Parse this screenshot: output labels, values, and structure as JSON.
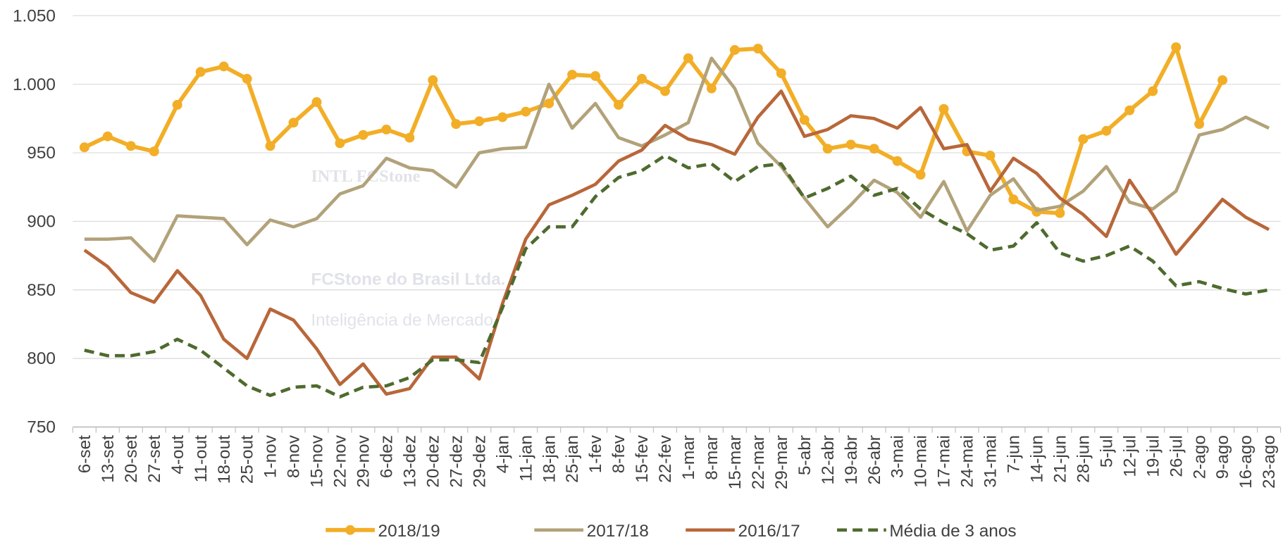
{
  "chart_data": {
    "type": "line",
    "categories": [
      "6-set",
      "13-set",
      "20-set",
      "27-set",
      "4-out",
      "11-out",
      "18-out",
      "25-out",
      "1-nov",
      "8-nov",
      "15-nov",
      "22-nov",
      "29-nov",
      "6-dez",
      "13-dez",
      "20-dez",
      "27-dez",
      "29-dez",
      "4-jan",
      "11-jan",
      "18-jan",
      "25-jan",
      "1-fev",
      "8-fev",
      "15-fev",
      "22-fev",
      "1-mar",
      "8-mar",
      "15-mar",
      "22-mar",
      "29-mar",
      "5-abr",
      "12-abr",
      "19-abr",
      "26-abr",
      "3-mai",
      "10-mai",
      "17-mai",
      "24-mai",
      "31-mai",
      "7-jun",
      "14-jun",
      "21-jun",
      "28-jun",
      "5-jul",
      "12-jul",
      "19-jul",
      "26-jul",
      "2-ago",
      "9-ago",
      "16-ago",
      "23-ago"
    ],
    "series": [
      {
        "name": "2018/19",
        "color": "#f2ae27",
        "markers": true,
        "values": [
          954,
          962,
          955,
          951,
          985,
          1009,
          1013,
          1004,
          955,
          972,
          987,
          957,
          963,
          967,
          961,
          1003,
          971,
          973,
          976,
          980,
          986,
          1007,
          1006,
          985,
          1004,
          995,
          1019,
          997,
          1025,
          1026,
          1008,
          974,
          953,
          956,
          953,
          944,
          934,
          982,
          951,
          948,
          916,
          907,
          906,
          960,
          966,
          981,
          995,
          1027,
          971,
          1003,
          null,
          null
        ]
      },
      {
        "name": "2017/18",
        "color": "#b2a27a",
        "values": [
          887,
          887,
          888,
          871,
          904,
          903,
          902,
          883,
          901,
          896,
          902,
          920,
          926,
          946,
          939,
          937,
          925,
          950,
          953,
          954,
          1000,
          968,
          986,
          961,
          955,
          963,
          972,
          1019,
          997,
          957,
          940,
          917,
          896,
          912,
          930,
          921,
          903,
          929,
          893,
          919,
          931,
          908,
          911,
          922,
          940,
          914,
          909,
          922,
          963,
          967,
          976,
          968
        ]
      },
      {
        "name": "2016/17",
        "color": "#b8673a",
        "values": [
          879,
          867,
          848,
          841,
          864,
          846,
          814,
          800,
          836,
          828,
          807,
          781,
          796,
          774,
          778,
          801,
          801,
          785,
          840,
          887,
          912,
          919,
          927,
          944,
          952,
          970,
          960,
          956,
          949,
          976,
          995,
          962,
          967,
          977,
          975,
          968,
          983,
          953,
          956,
          922,
          946,
          935,
          917,
          905,
          889,
          930,
          905,
          876,
          896,
          916,
          903,
          894
        ]
      },
      {
        "name": "Média de 3 anos",
        "color": "#4e6b2e",
        "dashed": true,
        "values": [
          806,
          802,
          802,
          805,
          814,
          806,
          793,
          780,
          773,
          779,
          780,
          772,
          779,
          780,
          786,
          799,
          799,
          797,
          837,
          880,
          896,
          896,
          918,
          932,
          937,
          948,
          939,
          942,
          929,
          940,
          942,
          917,
          924,
          933,
          919,
          924,
          909,
          899,
          891,
          879,
          882,
          899,
          877,
          871,
          875,
          882,
          871,
          853,
          856,
          851,
          847,
          850
        ]
      }
    ],
    "ylim": [
      750,
      1050
    ],
    "yticks": [
      750,
      800,
      850,
      900,
      950,
      {
        "value": 1000,
        "label": "1.000"
      },
      {
        "value": 1050,
        "label": "1.050"
      }
    ],
    "grid": true,
    "legend": "bottom",
    "watermark": [
      "INTL FCStone",
      "FCStone do Brasil Ltda.",
      "Inteligência de Mercado"
    ]
  }
}
